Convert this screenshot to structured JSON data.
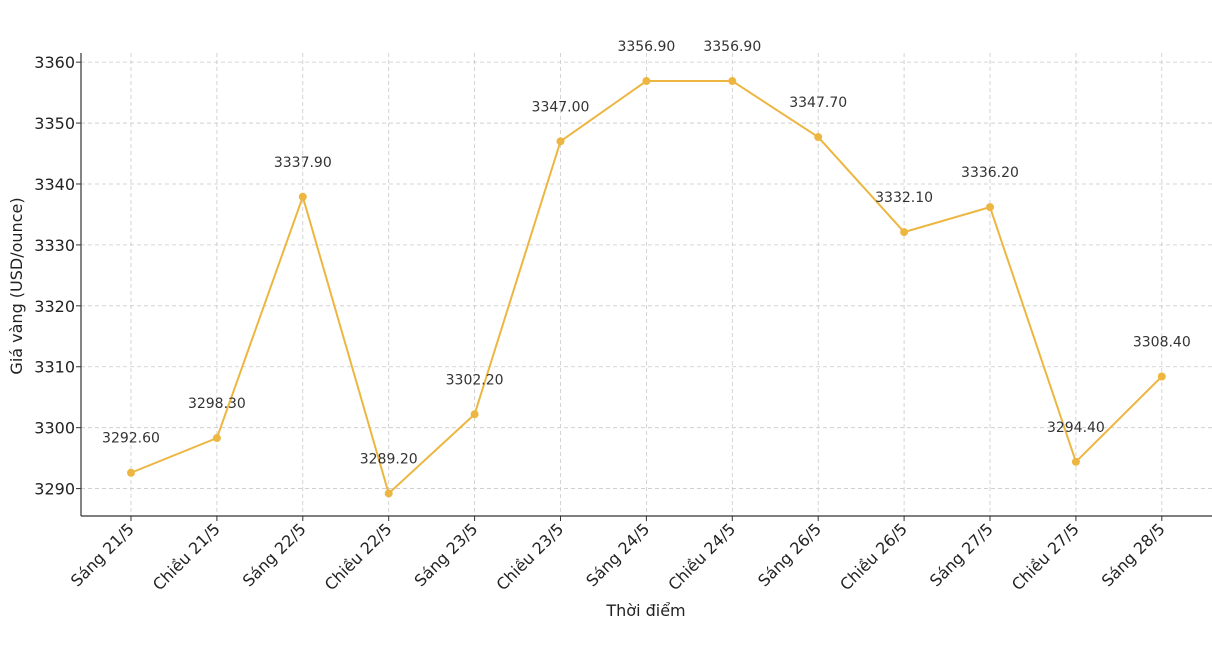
{
  "chart_data": {
    "type": "line",
    "title": "",
    "xlabel": "Thời điểm",
    "ylabel": "Giá vàng (USD/ounce)",
    "ylim": [
      3285.5,
      3361.5
    ],
    "yticks": [
      3290,
      3300,
      3310,
      3320,
      3330,
      3340,
      3350,
      3360
    ],
    "grid": true,
    "categories": [
      "Sáng 21/5",
      "Chiều 21/5",
      "Sáng 22/5",
      "Chiều 22/5",
      "Sáng 23/5",
      "Chiều 23/5",
      "Sáng 24/5",
      "Chiều 24/5",
      "Sáng 26/5",
      "Chiều 26/5",
      "Sáng 27/5",
      "Chiều 27/5",
      "Sáng 28/5"
    ],
    "series": [
      {
        "name": "Giá vàng",
        "color": "#EDB641",
        "values": [
          3292.6,
          3298.3,
          3337.9,
          3289.2,
          3302.2,
          3347.0,
          3356.9,
          3356.9,
          3347.7,
          3332.1,
          3336.2,
          3294.4,
          3308.4
        ],
        "labels": [
          "3292.60",
          "3298.30",
          "3337.90",
          "3289.20",
          "3302.20",
          "3347.00",
          "3356.90",
          "3356.90",
          "3347.70",
          "3332.10",
          "3336.20",
          "3294.40",
          "3308.40"
        ]
      }
    ]
  }
}
